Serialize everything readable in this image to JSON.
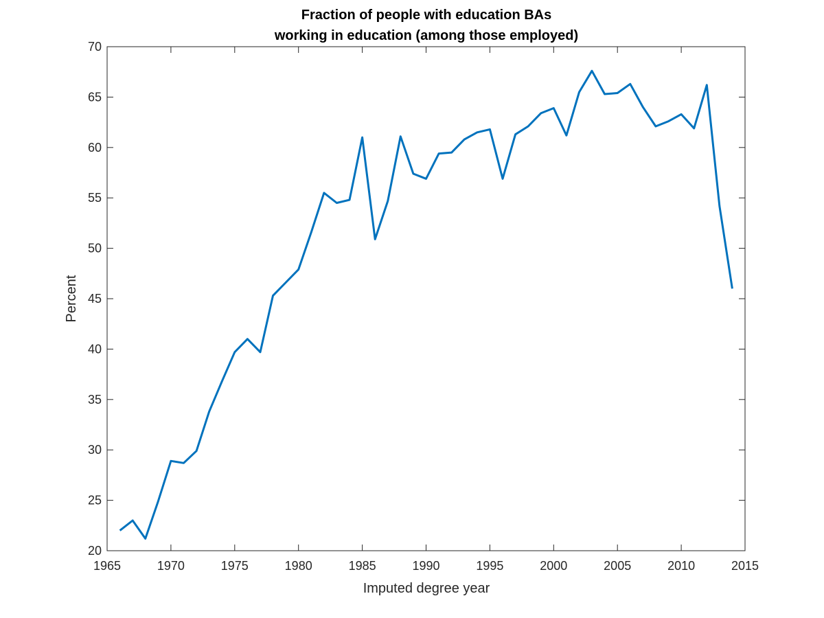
{
  "chart_data": {
    "type": "line",
    "title_lines": [
      "Fraction of people with education BAs",
      "working in education (among those employed)"
    ],
    "xlabel": "Imputed degree year",
    "ylabel": "Percent",
    "xlim": [
      1965,
      2015
    ],
    "ylim": [
      20,
      70
    ],
    "xticks": [
      "1965",
      "1970",
      "1975",
      "1980",
      "1985",
      "1990",
      "1995",
      "2000",
      "2005",
      "2010",
      "2015"
    ],
    "yticks": [
      "20",
      "25",
      "30",
      "35",
      "40",
      "45",
      "50",
      "55",
      "60",
      "65",
      "70"
    ],
    "grid": false,
    "line_color": "#0072bd",
    "series": [
      {
        "x": [
          1966,
          1967,
          1968,
          1969,
          1970,
          1971,
          1972,
          1973,
          1974,
          1975,
          1976,
          1977,
          1978,
          1979,
          1980,
          1981,
          1982,
          1983,
          1984,
          1985,
          1986,
          1987,
          1988,
          1989,
          1990,
          1991,
          1992,
          1993,
          1994,
          1995,
          1996,
          1997,
          1998,
          1999,
          2000,
          2001,
          2002,
          2003,
          2004,
          2005,
          2006,
          2007,
          2008,
          2009,
          2010,
          2011,
          2012,
          2013,
          2014
        ],
        "values": [
          22.0,
          23.0,
          21.2,
          24.9,
          28.9,
          28.7,
          29.9,
          33.8,
          36.8,
          39.7,
          41.0,
          39.7,
          45.3,
          46.6,
          47.9,
          51.6,
          55.5,
          54.5,
          54.8,
          61.0,
          50.9,
          54.7,
          61.1,
          57.4,
          56.9,
          59.4,
          59.5,
          60.8,
          61.5,
          61.8,
          56.9,
          61.3,
          62.1,
          63.4,
          63.9,
          61.2,
          65.5,
          67.6,
          65.3,
          65.4,
          66.3,
          64.0,
          62.1,
          62.6,
          63.3,
          61.9,
          66.2,
          54.2,
          46.0
        ]
      }
    ]
  }
}
